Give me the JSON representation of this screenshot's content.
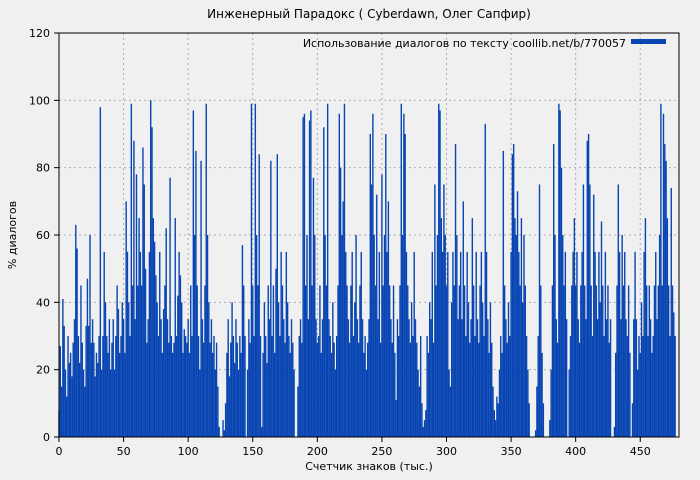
{
  "chart_data": {
    "type": "bar",
    "style": "impulses",
    "title": "Инженерный Парадокс ( Cyberdawn, Олег Сапфир)",
    "legend": "Использование диалогов по тексту coollib.net/b/770057",
    "legend_position": "top-right",
    "xlabel": "Счетчик знаков (тыс.)",
    "ylabel": "% диалогов",
    "xlim": [
      0,
      480
    ],
    "ylim": [
      0,
      120
    ],
    "x_ticks": [
      0,
      50,
      100,
      150,
      200,
      250,
      300,
      350,
      400,
      450
    ],
    "y_ticks": [
      0,
      20,
      40,
      60,
      80,
      100,
      120
    ],
    "grid": true,
    "colors": {
      "bar": "#0845b2",
      "background": "#f0f0f0",
      "grid": "#ababab",
      "border": "#000000"
    },
    "x_start": 0,
    "x_step": 1,
    "values": [
      8,
      27,
      15,
      41,
      33,
      20,
      12,
      30,
      22,
      25,
      18,
      28,
      35,
      63,
      56,
      30,
      22,
      45,
      28,
      20,
      15,
      33,
      47,
      33,
      60,
      28,
      35,
      28,
      18,
      25,
      22,
      30,
      98,
      20,
      30,
      55,
      40,
      30,
      25,
      35,
      20,
      28,
      35,
      20,
      30,
      45,
      38,
      25,
      30,
      40,
      35,
      25,
      70,
      55,
      40,
      30,
      99,
      45,
      88,
      35,
      78,
      45,
      65,
      55,
      45,
      86,
      75,
      50,
      28,
      35,
      55,
      100,
      92,
      65,
      58,
      48,
      40,
      30,
      55,
      35,
      25,
      38,
      45,
      62,
      35,
      28,
      77,
      30,
      25,
      28,
      65,
      30,
      42,
      55,
      48,
      40,
      25,
      32,
      30,
      28,
      35,
      25,
      45,
      30,
      97,
      60,
      85,
      45,
      30,
      20,
      82,
      35,
      28,
      45,
      99,
      60,
      40,
      28,
      35,
      25,
      30,
      20,
      28,
      15,
      3,
      0,
      0,
      5,
      2,
      10,
      25,
      35,
      18,
      28,
      40,
      30,
      22,
      35,
      28,
      20,
      30,
      25,
      57,
      45,
      30,
      0,
      20,
      35,
      28,
      99,
      45,
      30,
      99,
      60,
      45,
      84,
      30,
      3,
      25,
      40,
      30,
      22,
      45,
      35,
      82,
      30,
      45,
      25,
      50,
      84,
      40,
      30,
      55,
      45,
      35,
      28,
      55,
      40,
      30,
      25,
      35,
      28,
      20,
      0,
      0,
      15,
      30,
      35,
      28,
      95,
      96,
      45,
      60,
      35,
      94,
      97,
      45,
      77,
      60,
      35,
      28,
      30,
      45,
      25,
      35,
      92,
      60,
      45,
      99,
      35,
      30,
      25,
      40,
      28,
      20,
      30,
      45,
      96,
      80,
      60,
      70,
      99,
      55,
      45,
      35,
      28,
      45,
      55,
      30,
      40,
      60,
      35,
      28,
      45,
      55,
      35,
      25,
      30,
      20,
      28,
      35,
      90,
      75,
      96,
      60,
      45,
      72,
      35,
      55,
      28,
      78,
      45,
      60,
      90,
      55,
      70,
      45,
      35,
      28,
      45,
      25,
      11,
      35,
      30,
      45,
      99,
      60,
      96,
      90,
      55,
      45,
      35,
      28,
      40,
      30,
      55,
      35,
      28,
      20,
      15,
      30,
      10,
      3,
      5,
      8,
      30,
      25,
      40,
      35,
      55,
      28,
      75,
      45,
      60,
      99,
      97,
      65,
      55,
      75,
      60,
      45,
      55,
      20,
      15,
      40,
      55,
      45,
      87,
      60,
      35,
      45,
      55,
      35,
      70,
      45,
      30,
      55,
      40,
      28,
      35,
      65,
      45,
      30,
      55,
      35,
      28,
      45,
      55,
      40,
      30,
      93,
      55,
      35,
      25,
      40,
      28,
      15,
      8,
      5,
      12,
      10,
      20,
      30,
      25,
      85,
      45,
      35,
      28,
      40,
      30,
      55,
      84,
      87,
      65,
      60,
      73,
      55,
      45,
      65,
      40,
      60,
      45,
      30,
      20,
      10,
      0,
      0,
      0,
      0,
      2,
      15,
      30,
      75,
      45,
      25,
      10,
      0,
      0,
      0,
      0,
      5,
      20,
      45,
      87,
      60,
      35,
      28,
      99,
      97,
      80,
      60,
      45,
      55,
      35,
      0,
      20,
      30,
      45,
      55,
      65,
      45,
      55,
      35,
      28,
      45,
      55,
      75,
      45,
      35,
      88,
      90,
      75,
      45,
      30,
      72,
      55,
      45,
      35,
      55,
      40,
      64,
      45,
      30,
      55,
      35,
      45,
      28,
      35,
      0,
      0,
      3,
      25,
      45,
      75,
      55,
      35,
      60,
      45,
      55,
      35,
      30,
      45,
      25,
      0,
      10,
      35,
      55,
      35,
      20,
      30,
      25,
      40,
      30,
      55,
      65,
      45,
      30,
      45,
      35,
      25,
      30,
      45,
      55,
      35,
      45,
      60,
      99,
      45,
      96,
      87,
      82,
      65,
      45,
      30,
      74,
      45,
      37,
      30
    ]
  }
}
